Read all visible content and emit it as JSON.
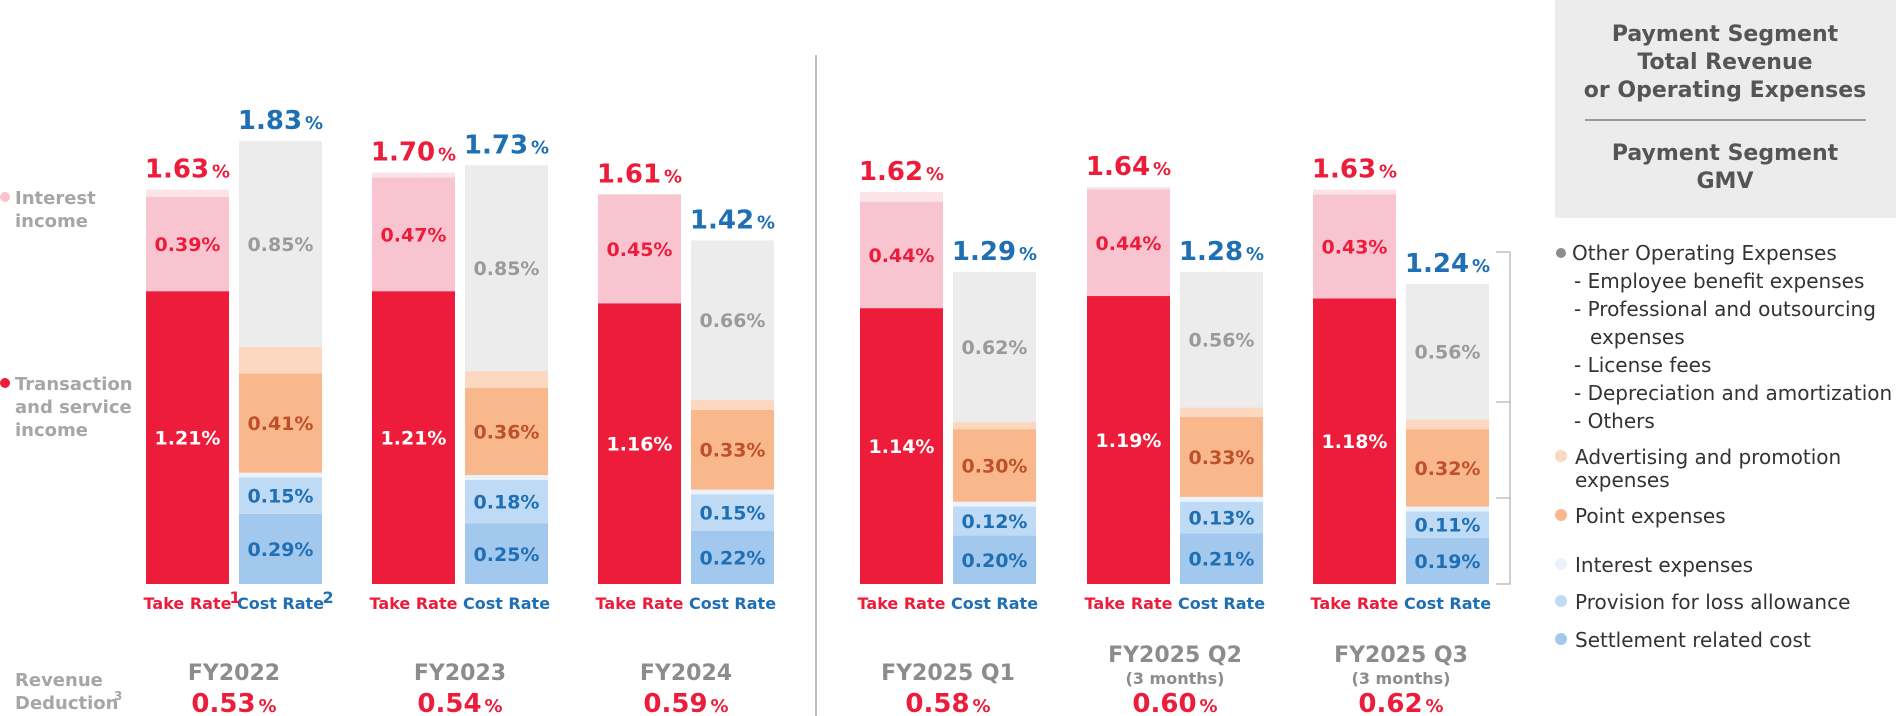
{
  "colors": {
    "take_rate": "#ed1c3a",
    "cost_rate": "#1f6fb5",
    "interest_income": "#f7c4d0",
    "transaction_income": "#ed1c3a",
    "other_opex": "#ececec",
    "advertising": "#fdd8c0",
    "point": "#f9b88c",
    "interest_expenses": "#eaf3fc",
    "provision": "#bfdaf4",
    "settlement": "#a3c8ee",
    "grey_text": "#a6a6a6",
    "rev_deduction": "#ed1c3a"
  },
  "side_labels": {
    "interest_income": [
      "Interest",
      "income"
    ],
    "transaction_income": [
      "Transaction",
      "and service",
      "income"
    ],
    "revenue_deduction": [
      "Revenue",
      "Deduction"
    ],
    "revenue_deduction_sup": "3"
  },
  "ratio_box": {
    "numerator": [
      "Payment Segment",
      "Total Revenue",
      "or Operating Expenses"
    ],
    "denominator": [
      "Payment Segment",
      "GMV"
    ]
  },
  "legend": {
    "other_opex": "Other Operating Expenses",
    "other_opex_items": [
      "- Employee benefit expenses",
      "- Professional and outsourcing",
      "expenses",
      "- License fees",
      "- Depreciation and amortization",
      "- Others"
    ],
    "advertising": [
      "Advertising and promotion",
      "expenses"
    ],
    "point": "Point expenses",
    "interest_expenses": "Interest expenses",
    "provision": "Provision for loss allowance",
    "settlement": "Settlement related cost"
  },
  "percent_sign": "%",
  "chart_data": {
    "type": "bar",
    "stacked": true,
    "ylim": [
      0,
      2.0
    ],
    "categories": [
      "FY2022",
      "FY2023",
      "FY2024",
      "FY2025 Q1",
      "FY2025 Q2",
      "FY2025 Q3"
    ],
    "category_sublabels": [
      "",
      "",
      "",
      "",
      "(3 months)",
      "(3 months)"
    ],
    "take_rate_label": "Take Rate",
    "cost_rate_label": "Cost Rate",
    "take_rate_sup": "1",
    "cost_rate_sup": "2",
    "take_rate": {
      "total": [
        "1.63",
        "1.70",
        "1.61",
        "1.62",
        "1.64",
        "1.63"
      ],
      "transaction_and_service_income": [
        1.21,
        1.21,
        1.16,
        1.14,
        1.19,
        1.18
      ],
      "interest_income": [
        0.39,
        0.47,
        0.45,
        0.44,
        0.44,
        0.43
      ],
      "other": [
        0.03,
        0.02,
        0.0,
        0.04,
        0.01,
        0.02
      ]
    },
    "cost_rate": {
      "total": [
        "1.83",
        "1.73",
        "1.42",
        "1.29",
        "1.28",
        "1.24"
      ],
      "settlement_related_cost": [
        0.29,
        0.25,
        0.22,
        0.2,
        0.21,
        0.19
      ],
      "provision_for_loss_allowance": [
        0.15,
        0.18,
        0.15,
        0.12,
        0.13,
        0.11
      ],
      "interest_expenses": [
        0.02,
        0.02,
        0.02,
        0.02,
        0.02,
        0.02
      ],
      "point_expenses": [
        0.41,
        0.36,
        0.33,
        0.3,
        0.33,
        0.32
      ],
      "advertising_and_promotion": [
        0.11,
        0.07,
        0.04,
        0.03,
        0.04,
        0.04
      ],
      "other_operating_expenses": [
        0.85,
        0.85,
        0.66,
        0.62,
        0.56,
        0.56
      ]
    },
    "revenue_deduction": [
      "0.53",
      "0.54",
      "0.59",
      "0.58",
      "0.60",
      "0.62"
    ]
  }
}
